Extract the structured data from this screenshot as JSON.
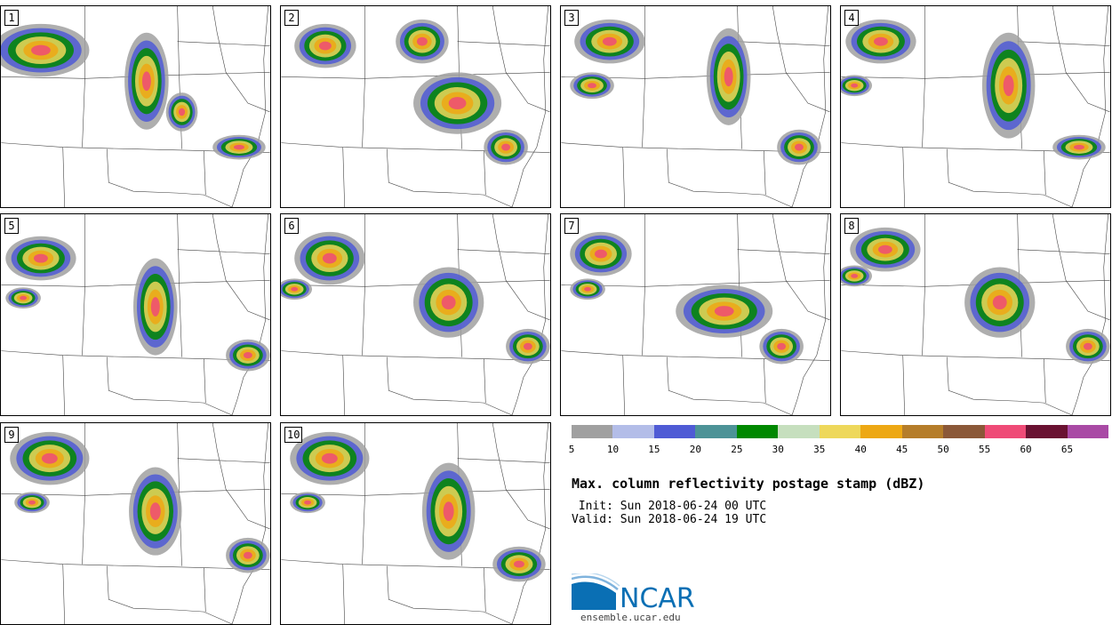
{
  "panels": [
    {
      "label": "1"
    },
    {
      "label": "2"
    },
    {
      "label": "3"
    },
    {
      "label": "4"
    },
    {
      "label": "5"
    },
    {
      "label": "6"
    },
    {
      "label": "7"
    },
    {
      "label": "8"
    },
    {
      "label": "9"
    },
    {
      "label": "10"
    }
  ],
  "legend": {
    "colors": [
      "#a0a0a0",
      "#b3bde8",
      "#4f5bd5",
      "#4d9397",
      "#008800",
      "#c6dfbe",
      "#eed85b",
      "#eda814",
      "#b57d2a",
      "#8b5838",
      "#ef4b77",
      "#6a1232",
      "#a94aa5"
    ],
    "ticks": [
      "5",
      "10",
      "15",
      "20",
      "25",
      "30",
      "35",
      "40",
      "45",
      "50",
      "55",
      "60",
      "65"
    ]
  },
  "title": "Max. column reflectivity postage stamp (dBZ)",
  "init_text": " Init: Sun 2018-06-24 00 UTC",
  "valid_text": "Valid: Sun 2018-06-24 19 UTC",
  "logo": {
    "text": "NCAR",
    "site": "ensemble.ucar.edu"
  },
  "colors": {
    "brand": "#0a6fb4",
    "border": "#000000"
  }
}
